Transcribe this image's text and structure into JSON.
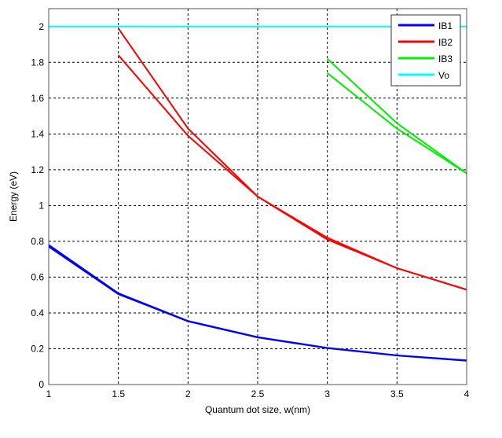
{
  "chart_data": {
    "type": "line",
    "title": "",
    "xlabel": "Quantum dot size, w(nm)",
    "ylabel": "Energy (eV)",
    "xlim": [
      1,
      4
    ],
    "ylim": [
      0,
      2.1
    ],
    "xticks": [
      1,
      1.5,
      2,
      2.5,
      3,
      3.5,
      4
    ],
    "yticks": [
      0,
      0.2,
      0.4,
      0.6,
      0.8,
      1,
      1.2,
      1.4,
      1.6,
      1.8,
      2
    ],
    "grid": true,
    "grid_style": "dashed",
    "legend_position": "top-right",
    "legend": [
      "IB1",
      "IB2",
      "IB3",
      "Vo"
    ],
    "series": [
      {
        "name": "IB1",
        "color": "#0000ff",
        "lines": [
          {
            "x": [
              1,
              1.5,
              2,
              2.5,
              3,
              3.5,
              4
            ],
            "y": [
              0.78,
              0.51,
              0.355,
              0.265,
              0.205,
              0.163,
              0.135
            ]
          },
          {
            "x": [
              1,
              1.5,
              2,
              2.5,
              3,
              3.5,
              4
            ],
            "y": [
              0.77,
              0.505,
              0.353,
              0.263,
              0.203,
              0.162,
              0.133
            ]
          }
        ]
      },
      {
        "name": "IB2",
        "color": "#ff0000",
        "lines": [
          {
            "x": [
              1.5,
              2,
              2.5,
              3,
              3.5,
              4
            ],
            "y": [
              1.99,
              1.43,
              1.05,
              0.82,
              0.65,
              0.53
            ]
          },
          {
            "x": [
              1.5,
              2,
              2.5,
              3,
              3.5,
              4
            ],
            "y": [
              1.84,
              1.39,
              1.05,
              0.81,
              0.65,
              0.53
            ]
          }
        ]
      },
      {
        "name": "IB3",
        "color": "#00ee00",
        "lines": [
          {
            "x": [
              3,
              3.5,
              4
            ],
            "y": [
              1.82,
              1.46,
              1.18
            ]
          },
          {
            "x": [
              3,
              3.5,
              4
            ],
            "y": [
              1.74,
              1.43,
              1.18
            ]
          }
        ]
      },
      {
        "name": "Vo",
        "color": "#00ffff",
        "lines": [
          {
            "x": [
              1,
              4
            ],
            "y": [
              2,
              2
            ]
          }
        ]
      }
    ]
  }
}
